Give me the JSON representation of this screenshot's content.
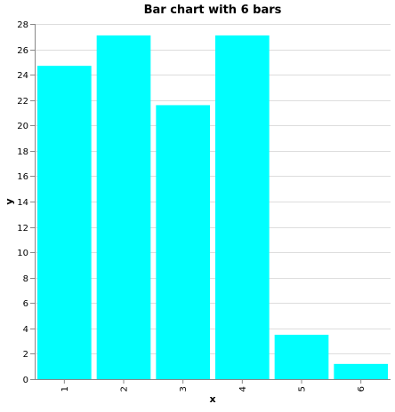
{
  "chart_data": {
    "type": "bar",
    "title": "Bar chart with 6 bars",
    "xlabel": "x",
    "ylabel": "y",
    "categories": [
      "1",
      "2",
      "3",
      "4",
      "5",
      "6"
    ],
    "values": [
      24.7,
      27.1,
      21.6,
      27.1,
      3.5,
      1.2
    ],
    "ylim": [
      0,
      28
    ],
    "yticks": [
      0,
      2,
      4,
      6,
      8,
      10,
      12,
      14,
      16,
      18,
      20,
      22,
      24,
      26,
      28
    ],
    "grid": true,
    "legend": "none",
    "bar_color": "#00ffff"
  }
}
